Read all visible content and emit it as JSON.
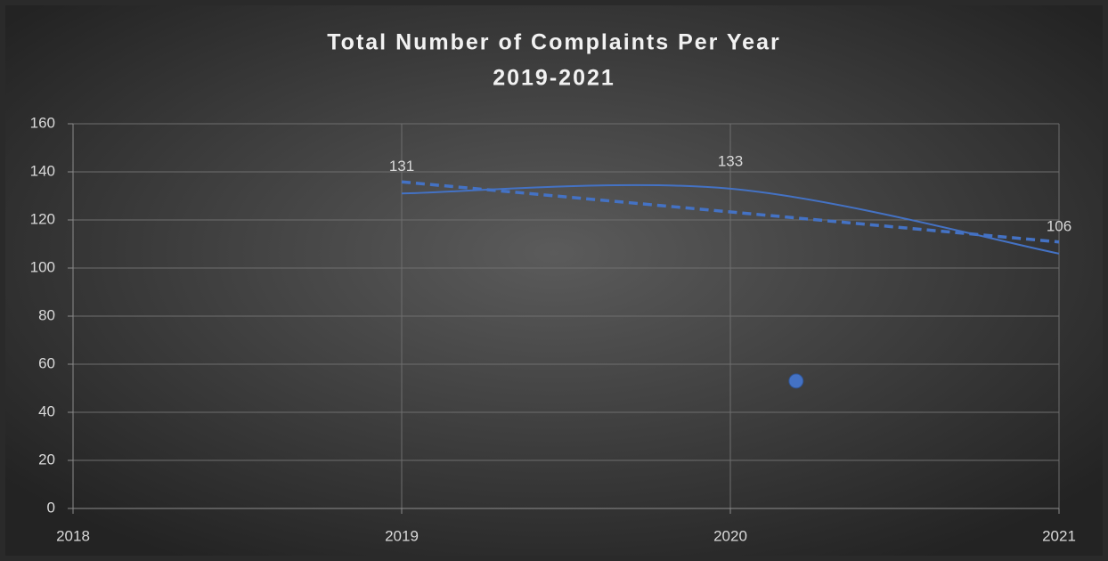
{
  "chart_data": {
    "type": "scatter-smooth",
    "title": "Total Number of Complaints Per Year",
    "subtitle": "2019-2021",
    "series": [
      {
        "color": "#4472c4",
        "x": [
          2019,
          2020,
          2021
        ],
        "values": [
          131,
          133,
          106
        ],
        "smooth": true,
        "data_labels": true,
        "trendline": "linear"
      },
      {
        "color": "#4472c4",
        "x": [
          2020.2
        ],
        "values": [
          53
        ],
        "marker": true
      }
    ],
    "xlim": [
      2018,
      2021
    ],
    "xticks": [
      2018,
      2019,
      2020,
      2021
    ],
    "ylim": [
      0,
      160
    ],
    "yticks": [
      0,
      20,
      40,
      60,
      80,
      100,
      120,
      140,
      160
    ],
    "grid": true
  }
}
